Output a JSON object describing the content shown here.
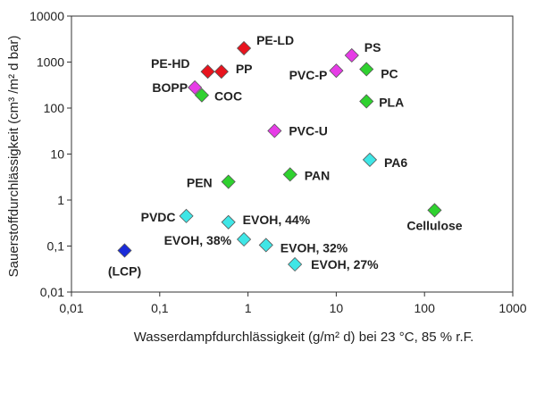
{
  "chart_data": {
    "type": "scatter",
    "title": "",
    "xlabel": "Wasserdampfdurchlässigkeit (g/m² d) bei 23 °C, 85 % r.F.",
    "ylabel": "Sauerstoffdurchlässigkeit (cm³ /m² d bar)",
    "xscale": "log",
    "yscale": "log",
    "xlim": [
      0.01,
      1000
    ],
    "ylim": [
      0.01,
      10000
    ],
    "x_ticks": [
      "0,01",
      "0,1",
      "1",
      "10",
      "100",
      "1000"
    ],
    "y_ticks": [
      "0,01",
      "0,1",
      "1",
      "10",
      "100",
      "1000",
      "10000"
    ],
    "grid": false,
    "legend": "none",
    "colors": {
      "red": "#e8141e",
      "magenta": "#e63ce6",
      "green": "#2fd12f",
      "cyan": "#3fe6e6",
      "blue": "#1a2bd9"
    },
    "points": [
      {
        "label": "PE-LD",
        "x": 0.9,
        "y": 2000,
        "color": "red"
      },
      {
        "label": "PE-HD",
        "x": 0.35,
        "y": 620,
        "color": "red"
      },
      {
        "label": "PP",
        "x": 0.5,
        "y": 620,
        "color": "red"
      },
      {
        "label": "BOPP",
        "x": 0.25,
        "y": 280,
        "color": "magenta"
      },
      {
        "label": "COC",
        "x": 0.3,
        "y": 190,
        "color": "green"
      },
      {
        "label": "PS",
        "x": 15,
        "y": 1400,
        "color": "magenta"
      },
      {
        "label": "PVC-P",
        "x": 10,
        "y": 650,
        "color": "magenta"
      },
      {
        "label": "PC",
        "x": 22,
        "y": 700,
        "color": "green"
      },
      {
        "label": "PLA",
        "x": 22,
        "y": 140,
        "color": "green"
      },
      {
        "label": "PVC-U",
        "x": 2,
        "y": 32,
        "color": "magenta"
      },
      {
        "label": "PA6",
        "x": 24,
        "y": 7.5,
        "color": "cyan"
      },
      {
        "label": "PAN",
        "x": 3,
        "y": 3.6,
        "color": "green"
      },
      {
        "label": "PEN",
        "x": 0.6,
        "y": 2.5,
        "color": "green"
      },
      {
        "label": "Cellulose",
        "x": 130,
        "y": 0.6,
        "color": "green"
      },
      {
        "label": "PVDC",
        "x": 0.2,
        "y": 0.45,
        "color": "cyan"
      },
      {
        "label": "EVOH, 44%",
        "x": 0.6,
        "y": 0.33,
        "color": "cyan"
      },
      {
        "label": "EVOH, 38%",
        "x": 0.9,
        "y": 0.14,
        "color": "cyan"
      },
      {
        "label": "EVOH, 32%",
        "x": 1.6,
        "y": 0.105,
        "color": "cyan"
      },
      {
        "label": "EVOH, 27%",
        "x": 3.4,
        "y": 0.04,
        "color": "cyan"
      },
      {
        "label": "(LCP)",
        "x": 0.04,
        "y": 0.08,
        "color": "blue"
      }
    ]
  }
}
